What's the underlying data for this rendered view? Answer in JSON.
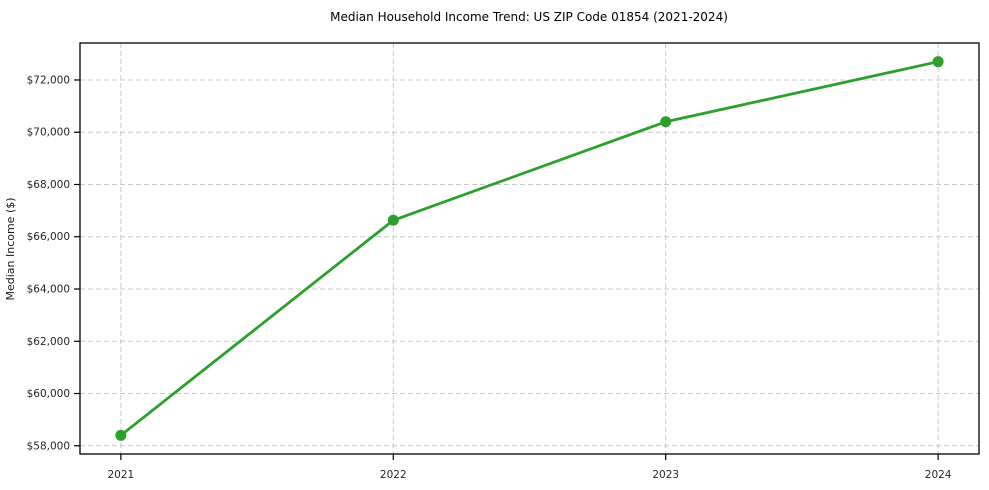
{
  "chart_data": {
    "type": "line",
    "title": "Median Household Income Trend: US ZIP Code 01854 (2021-2024)",
    "xlabel": "",
    "ylabel": "Median Income ($)",
    "categories": [
      "2021",
      "2022",
      "2023",
      "2024"
    ],
    "x": [
      2021,
      2022,
      2023,
      2024
    ],
    "values": [
      58400,
      66630,
      70400,
      72700
    ],
    "x_tick_labels": [
      "2021",
      "2022",
      "2023",
      "2024"
    ],
    "y_tick_values": [
      58000,
      60000,
      62000,
      64000,
      66000,
      68000,
      70000,
      72000
    ],
    "y_tick_labels": [
      "$58,000",
      "$60,000",
      "$62,000",
      "$64,000",
      "$66,000",
      "$68,000",
      "$70,000",
      "$72,000"
    ],
    "xlim": [
      2020.85,
      2024.15
    ],
    "ylim": [
      57685,
      73415
    ],
    "grid": true,
    "grid_style": "dashed",
    "legend": false,
    "marker": "circle",
    "colors": {
      "line": "#2ca02c",
      "marker": "#2ca02c",
      "grid": "#c9c9c9",
      "axis": "#000000",
      "tick_text": "#262626",
      "background": "#ffffff"
    }
  }
}
